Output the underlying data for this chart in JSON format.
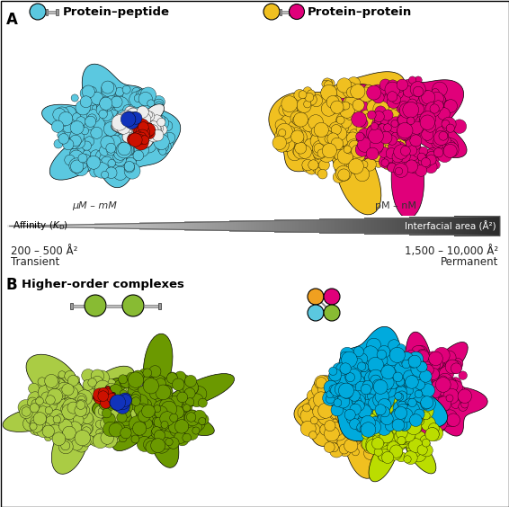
{
  "label_protein_peptide": "Protein–peptide",
  "label_protein_protein": "Protein–protein",
  "label_higher_order": "Higher-order complexes",
  "left_affinity": "μM – mM",
  "right_affinity": "pM – nM",
  "left_area": "200 – 500 Å²",
  "right_area": "1,500 – 10,000 Å²",
  "left_label": "Transient",
  "right_label": "Permanent",
  "color_blue": "#5BC8E0",
  "color_yellow": "#F0C020",
  "color_magenta": "#E0007A",
  "color_green_light": "#AACC44",
  "color_green_dark": "#6B9900",
  "color_cyan": "#00AADD",
  "color_gray": "#888888",
  "color_orange": "#F0A020",
  "color_lime": "#BBDD00",
  "bg_color": "#FFFFFF"
}
